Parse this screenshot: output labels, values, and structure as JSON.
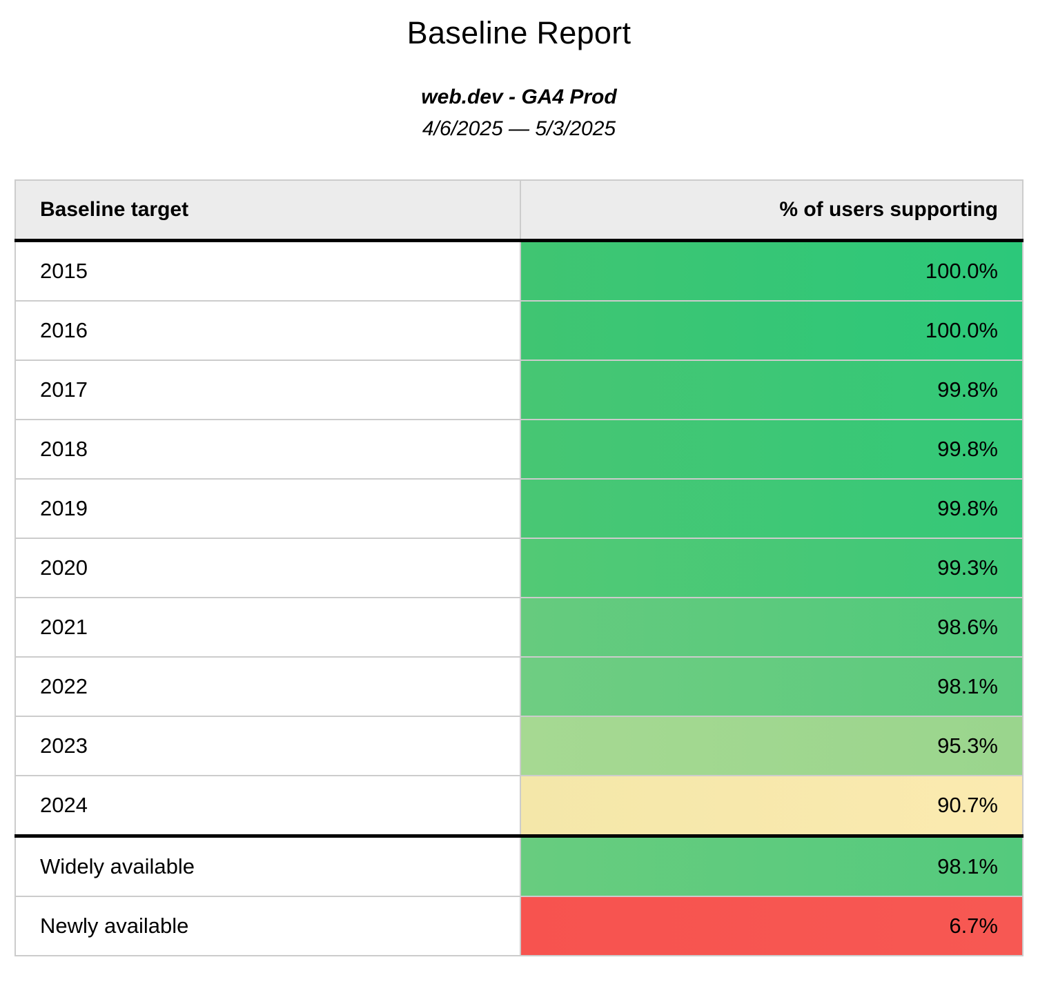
{
  "report": {
    "title": "Baseline Report",
    "subtitle": "web.dev - GA4 Prod",
    "date_range": "4/6/2025 — 5/3/2025"
  },
  "table": {
    "columns": [
      {
        "label": "Baseline target"
      },
      {
        "label": "% of users supporting"
      }
    ],
    "rows": [
      {
        "target": "2015",
        "value": "100.0%",
        "color_left": "#40c572",
        "color_right": "#2cc87a",
        "divider_above": false
      },
      {
        "target": "2016",
        "value": "100.0%",
        "color_left": "#40c572",
        "color_right": "#2cc87a",
        "divider_above": false
      },
      {
        "target": "2017",
        "value": "99.8%",
        "color_left": "#47c673",
        "color_right": "#33c878",
        "divider_above": false
      },
      {
        "target": "2018",
        "value": "99.8%",
        "color_left": "#47c673",
        "color_right": "#33c878",
        "divider_above": false
      },
      {
        "target": "2019",
        "value": "99.8%",
        "color_left": "#49c774",
        "color_right": "#35c878",
        "divider_above": false
      },
      {
        "target": "2020",
        "value": "99.3%",
        "color_left": "#52c975",
        "color_right": "#3ec878",
        "divider_above": false
      },
      {
        "target": "2021",
        "value": "98.6%",
        "color_left": "#66cb7e",
        "color_right": "#50c97c",
        "divider_above": false
      },
      {
        "target": "2022",
        "value": "98.1%",
        "color_left": "#6fcd82",
        "color_right": "#5bca7e",
        "divider_above": false
      },
      {
        "target": "2023",
        "value": "95.3%",
        "color_left": "#a6d992",
        "color_right": "#9ad58d",
        "divider_above": false
      },
      {
        "target": "2024",
        "value": "90.7%",
        "color_left": "#f4e7a9",
        "color_right": "#fbeab0",
        "divider_above": false
      },
      {
        "target": "Widely available",
        "value": "98.1%",
        "color_left": "#68cc7f",
        "color_right": "#54ca7d",
        "divider_above": true
      },
      {
        "target": "Newly available",
        "value": "6.7%",
        "color_left": "#f7534f",
        "color_right": "#f75853",
        "divider_above": false
      }
    ]
  },
  "colors": {
    "header_bg": "#ececec",
    "table_border": "#cccccc",
    "section_divider": "#000000",
    "text": "#000000",
    "scale_high": "#2cc87a",
    "scale_mid": "#fbeab0",
    "scale_low": "#f7534f"
  },
  "chart_data": {
    "type": "table",
    "title": "Baseline Report",
    "subtitle": "web.dev - GA4 Prod",
    "date_range": "4/6/2025 — 5/3/2025",
    "columns": [
      "Baseline target",
      "% of users supporting"
    ],
    "categories": [
      "2015",
      "2016",
      "2017",
      "2018",
      "2019",
      "2020",
      "2021",
      "2022",
      "2023",
      "2024",
      "Widely available",
      "Newly available"
    ],
    "values": [
      100.0,
      100.0,
      99.8,
      99.8,
      99.8,
      99.3,
      98.6,
      98.1,
      95.3,
      90.7,
      98.1,
      6.7
    ],
    "value_unit": "%",
    "layout": "heatmap-colored value column, green = high support, yellow = mid, red = low; thick divider separates year targets from availability summary rows"
  }
}
